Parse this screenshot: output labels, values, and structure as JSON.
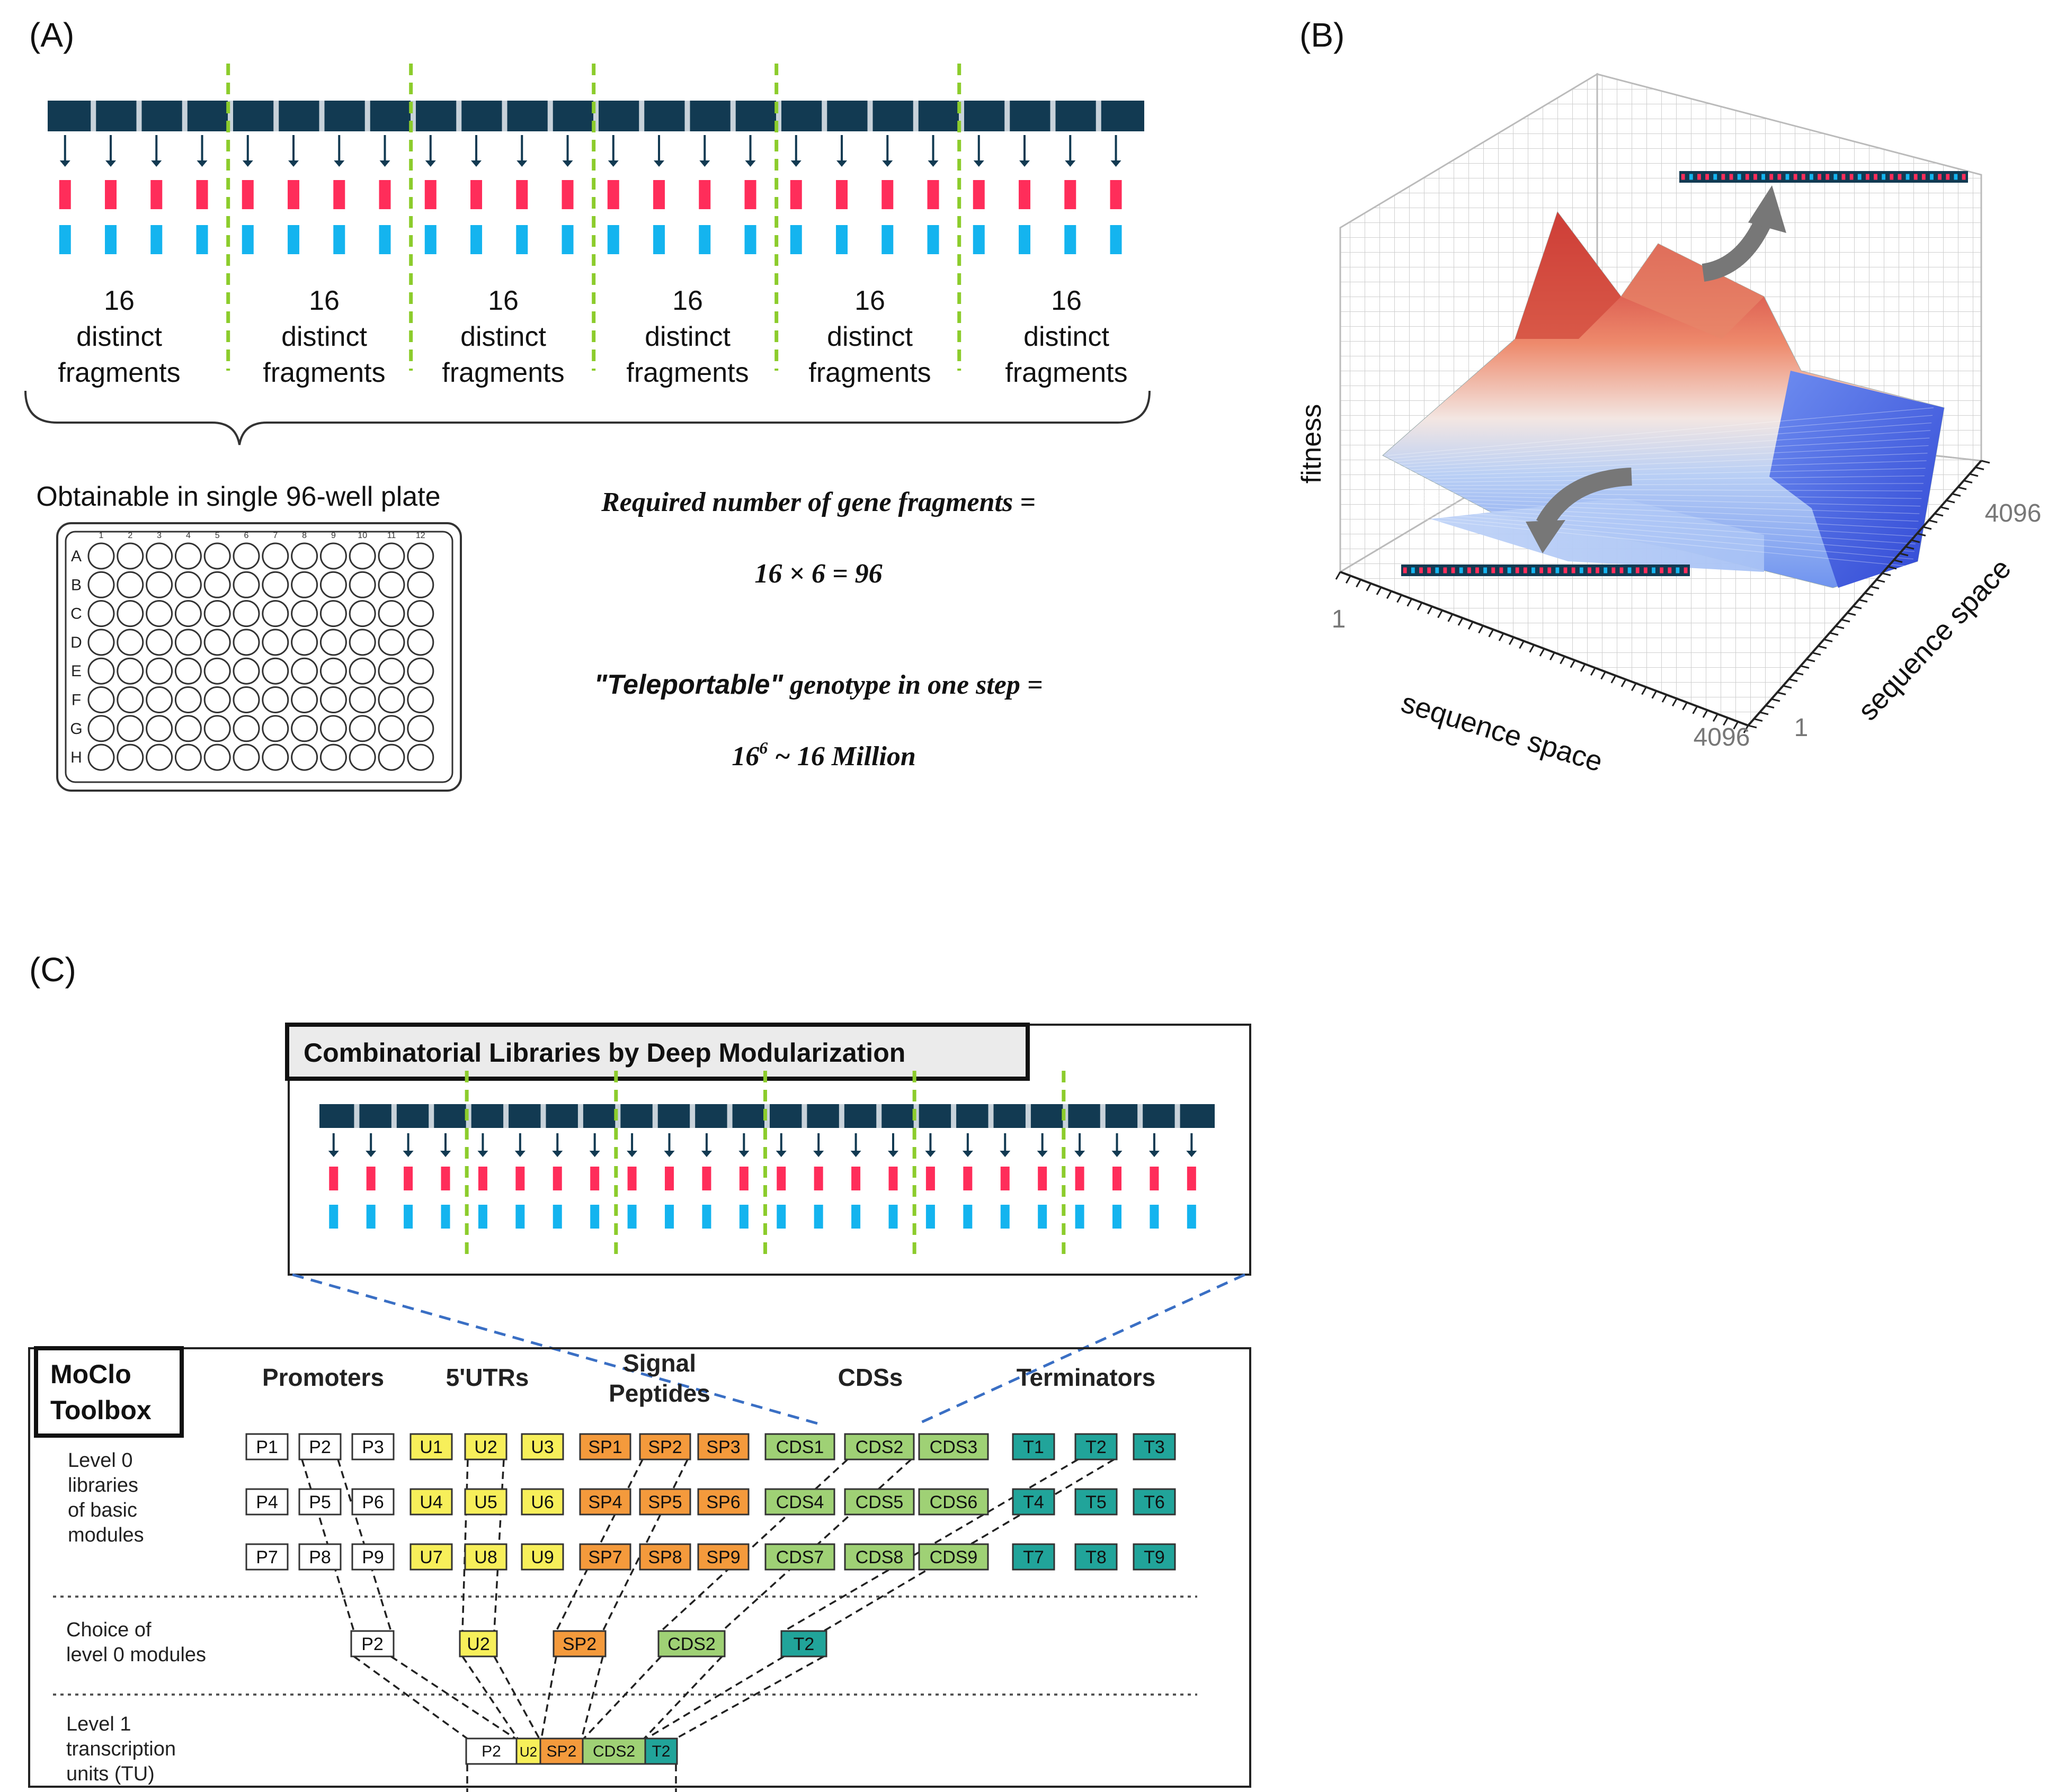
{
  "panel_a": {
    "label": "(A)",
    "group_count": "16",
    "group_word1": "distinct",
    "group_word2": "fragments",
    "plate_caption": "Obtainable in single 96-well plate",
    "plate_rows": [
      "A",
      "B",
      "C",
      "D",
      "E",
      "F",
      "G",
      "H"
    ],
    "plate_cols": [
      "1",
      "2",
      "3",
      "4",
      "5",
      "6",
      "7",
      "8",
      "9",
      "10",
      "11",
      "12"
    ],
    "eq1_text": "Required number of gene fragments =",
    "eq2_text": "16  × 6  = 96",
    "eq3_quoted": "\"Teleportable\"",
    "eq3_text": " genotype in one step  =",
    "eq4_base": "16",
    "eq4_exp": "6",
    "eq4_rest": " ~ 16 Million",
    "colors": {
      "bar": "#123a52",
      "red": "#ff2d5a",
      "cyan": "#14b4ef",
      "green_dash": "#8ccc2c"
    }
  },
  "panel_b": {
    "label": "(B)",
    "z_label": "fitness",
    "x_label": "sequence space",
    "y_label": "sequence space",
    "x_min": "1",
    "x_max": "4096",
    "y_min": "1",
    "y_max": "4096"
  },
  "panel_c": {
    "label": "(C)",
    "inset_title": "Combinatorial Libraries by Deep Modularization",
    "toolbox_line1": "MoClo",
    "toolbox_line2": "Toolbox",
    "columns": [
      "Promoters",
      "5'UTRs",
      "Signal",
      "Peptides",
      "CDSs",
      "Terminators"
    ],
    "rows": {
      "level0_l1": "Level 0",
      "level0_l2": "libraries",
      "level0_l3": "of basic",
      "level0_l4": "modules",
      "choice_l1": "Choice of",
      "choice_l2": "level 0 modules",
      "level1_l1": "Level 1",
      "level1_l2": "transcription",
      "level1_l3": "units (TU)"
    },
    "modules": {
      "P": [
        "P1",
        "P2",
        "P3",
        "P4",
        "P5",
        "P6",
        "P7",
        "P8",
        "P9"
      ],
      "U": [
        "U1",
        "U2",
        "U3",
        "U4",
        "U5",
        "U6",
        "U7",
        "U8",
        "U9"
      ],
      "SP": [
        "SP1",
        "SP2",
        "SP3",
        "SP4",
        "SP5",
        "SP6",
        "SP7",
        "SP8",
        "SP9"
      ],
      "CDS": [
        "CDS1",
        "CDS2",
        "CDS3",
        "CDS4",
        "CDS5",
        "CDS6",
        "CDS7",
        "CDS8",
        "CDS9"
      ],
      "T": [
        "T1",
        "T2",
        "T3",
        "T4",
        "T5",
        "T6",
        "T7",
        "T8",
        "T9"
      ]
    },
    "choice": [
      "P2",
      "U2",
      "SP2",
      "CDS2",
      "T2"
    ],
    "tu": [
      "P2",
      "U2",
      "SP2",
      "CDS2",
      "T2"
    ],
    "colors": {
      "P": "#ffffff",
      "U": "#f7ef5a",
      "SP": "#f49a3c",
      "CDS": "#9fd175",
      "T": "#21a49a",
      "connector": "#3a6fc4"
    }
  }
}
